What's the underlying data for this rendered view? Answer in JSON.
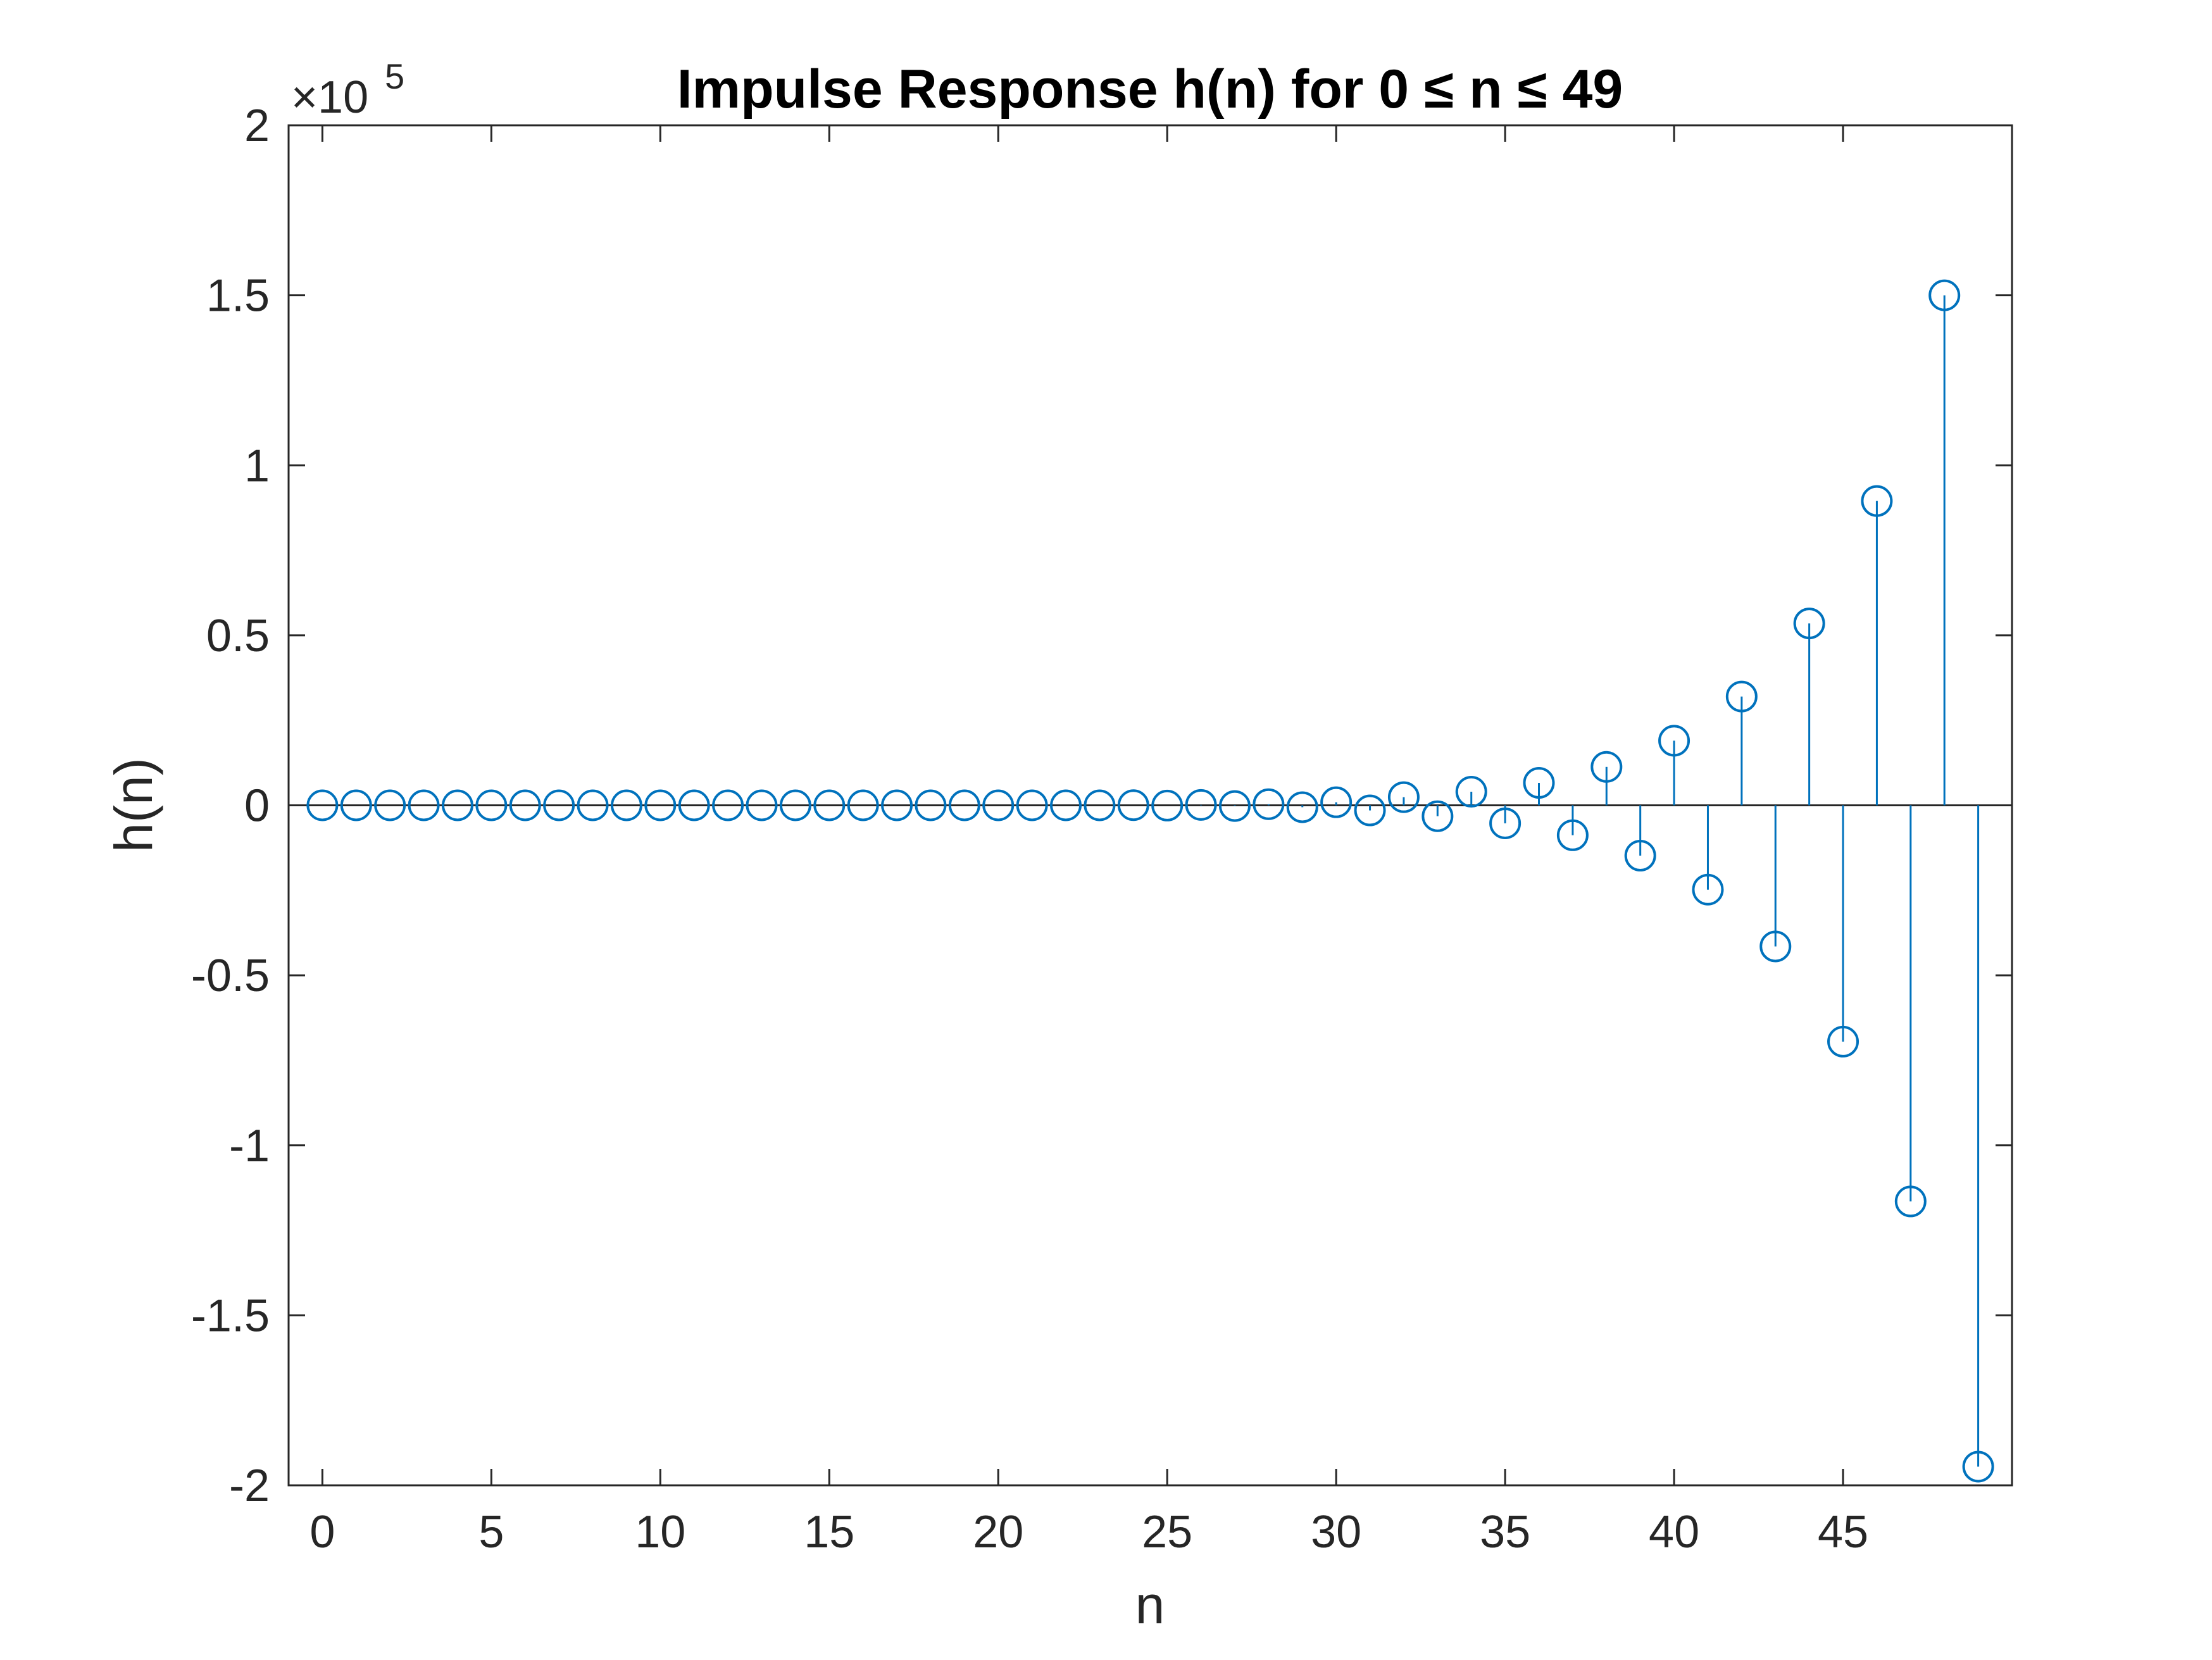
{
  "chart_data": {
    "type": "stem",
    "title": "Impulse Response h(n) for 0 ≤ n ≤ 49",
    "xlabel": "n",
    "ylabel": "h(n)",
    "exponent_label": {
      "base": "×10",
      "power": "5"
    },
    "xlim": [
      -1,
      50
    ],
    "ylim": [
      -2,
      2
    ],
    "y_scale_factor": 100000,
    "x_ticks": [
      0,
      5,
      10,
      15,
      20,
      25,
      30,
      35,
      40,
      45
    ],
    "x_tick_labels": [
      "0",
      "5",
      "10",
      "15",
      "20",
      "25",
      "30",
      "35",
      "40",
      "45"
    ],
    "y_ticks": [
      -2,
      -1.5,
      -1,
      -0.5,
      0,
      0.5,
      1,
      1.5,
      2
    ],
    "y_tick_labels": [
      "-2",
      "-1.5",
      "-1",
      "-0.5",
      "0",
      "0.5",
      "1",
      "1.5",
      "2"
    ],
    "grid": false,
    "series": [
      {
        "color": "#0072BD",
        "marker": "open-circle",
        "x": [
          0,
          1,
          2,
          3,
          4,
          5,
          6,
          7,
          8,
          9,
          10,
          11,
          12,
          13,
          14,
          15,
          16,
          17,
          18,
          19,
          20,
          21,
          22,
          23,
          24,
          25,
          26,
          27,
          28,
          29,
          30,
          31,
          32,
          33,
          34,
          35,
          36,
          37,
          38,
          39,
          40,
          41,
          42,
          43,
          44,
          45,
          46,
          47,
          48,
          49
        ],
        "values": [
          0,
          0,
          0,
          0,
          0,
          0,
          0,
          0,
          0,
          0,
          0,
          0,
          0,
          0,
          0,
          0,
          0,
          0,
          0,
          0,
          0,
          0,
          0,
          0,
          0.0005,
          -0.0008,
          0.0012,
          -0.002,
          0.0033,
          -0.0055,
          0.009,
          -0.015,
          0.024,
          -0.032,
          0.04,
          -0.053,
          0.066,
          -0.088,
          0.113,
          -0.148,
          0.19,
          -0.248,
          0.32,
          -0.415,
          0.535,
          -0.695,
          0.895,
          -1.165,
          1.5,
          -1.945
        ]
      }
    ]
  }
}
